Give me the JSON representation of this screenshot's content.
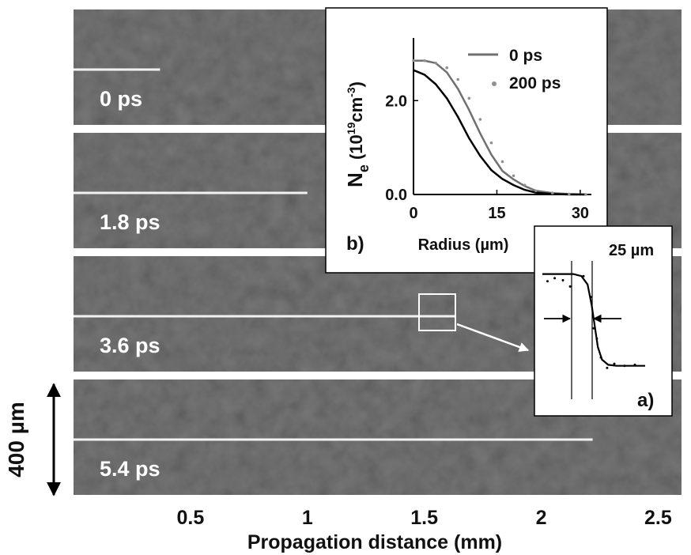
{
  "figure": {
    "frames": [
      {
        "time_label": "0 ps",
        "filament_end_mm": 0.37
      },
      {
        "time_label": "1.8 ps",
        "filament_end_mm": 1.0
      },
      {
        "time_label": "3.6 ps",
        "filament_end_mm": 1.63
      },
      {
        "time_label": "5.4 ps",
        "filament_end_mm": 2.22
      }
    ],
    "scale_bar_label": "400 µm",
    "colors": {
      "background": "#7e7e7e",
      "filament": "#f2f2f2",
      "separator": "#ffffff"
    }
  },
  "chart_data": [
    {
      "type": "line",
      "title": "",
      "xlabel": "Propagation distance (mm)",
      "ylabel": "",
      "xlim": [
        0,
        2.6
      ],
      "xticks": [
        "0.5",
        "1",
        "1.5",
        "2",
        "2.5"
      ],
      "xtick_values": [
        0.5,
        1,
        1.5,
        2,
        2.5
      ],
      "grid": false
    },
    {
      "type": "line",
      "panel_label": "b)",
      "title": "",
      "xlabel": "Radius (µm)",
      "ylabel_main": "N",
      "ylabel_sub": "e",
      "ylabel_unit_pre": " (10",
      "ylabel_exp": "19",
      "ylabel_unit_mid": "cm",
      "ylabel_exp2": "-3",
      "ylabel_unit_post": ")",
      "xlim": [
        0,
        32
      ],
      "ylim": [
        0,
        3.2
      ],
      "xticks": [
        "0",
        "15",
        "30"
      ],
      "xtick_values": [
        0,
        15,
        30
      ],
      "yticks": [
        "0.0",
        "2.0"
      ],
      "ytick_values": [
        0,
        2
      ],
      "grid": false,
      "legend_position": "top-right",
      "series": [
        {
          "name": "0 ps",
          "style": "solid",
          "color": "#707070",
          "x": [
            0,
            2,
            4,
            6,
            8,
            10,
            12,
            14,
            16,
            18,
            20,
            22,
            25,
            28,
            31
          ],
          "y": [
            2.85,
            2.85,
            2.8,
            2.6,
            2.25,
            1.8,
            1.3,
            0.85,
            0.5,
            0.32,
            0.18,
            0.08,
            0.03,
            0.01,
            0
          ]
        },
        {
          "name": "",
          "style": "solid",
          "color": "#000000",
          "x": [
            0,
            2,
            4,
            6,
            8,
            10,
            12,
            14,
            16,
            18,
            20,
            22,
            25,
            28,
            31
          ],
          "y": [
            2.65,
            2.55,
            2.35,
            2.05,
            1.65,
            1.2,
            0.82,
            0.52,
            0.33,
            0.2,
            0.1,
            0.04,
            0.01,
            0,
            0
          ]
        },
        {
          "name": "200 ps",
          "style": "dots",
          "color": "#909090",
          "x": [
            0,
            2,
            4,
            6,
            8,
            10,
            12,
            14,
            16,
            18,
            20,
            22,
            25,
            28,
            31
          ],
          "y": [
            2.85,
            2.85,
            2.8,
            2.7,
            2.45,
            2.05,
            1.6,
            1.1,
            0.7,
            0.4,
            0.2,
            0.08,
            0.03,
            0.01,
            0
          ]
        }
      ]
    },
    {
      "type": "line",
      "panel_label": "a)",
      "annotation": "25 µm",
      "xlim": [
        0,
        1
      ],
      "ylim": [
        0,
        1
      ],
      "series": [
        {
          "name": "",
          "style": "solid",
          "color": "#000000",
          "x": [
            0.0,
            0.3,
            0.38,
            0.44,
            0.48,
            0.51,
            0.54,
            0.58,
            0.64,
            0.72,
            1.0
          ],
          "y": [
            0.92,
            0.92,
            0.9,
            0.82,
            0.62,
            0.42,
            0.22,
            0.1,
            0.05,
            0.04,
            0.04
          ]
        },
        {
          "name": "",
          "style": "dots",
          "color": "#000000",
          "x": [
            0.05,
            0.12,
            0.2,
            0.27,
            0.4,
            0.47,
            0.5,
            0.53,
            0.57,
            0.63,
            0.7,
            0.8,
            0.9
          ],
          "y": [
            0.85,
            0.88,
            0.86,
            0.8,
            0.9,
            0.7,
            0.4,
            0.3,
            0.12,
            0.02,
            0.06,
            0.04,
            0.05
          ]
        }
      ]
    }
  ]
}
